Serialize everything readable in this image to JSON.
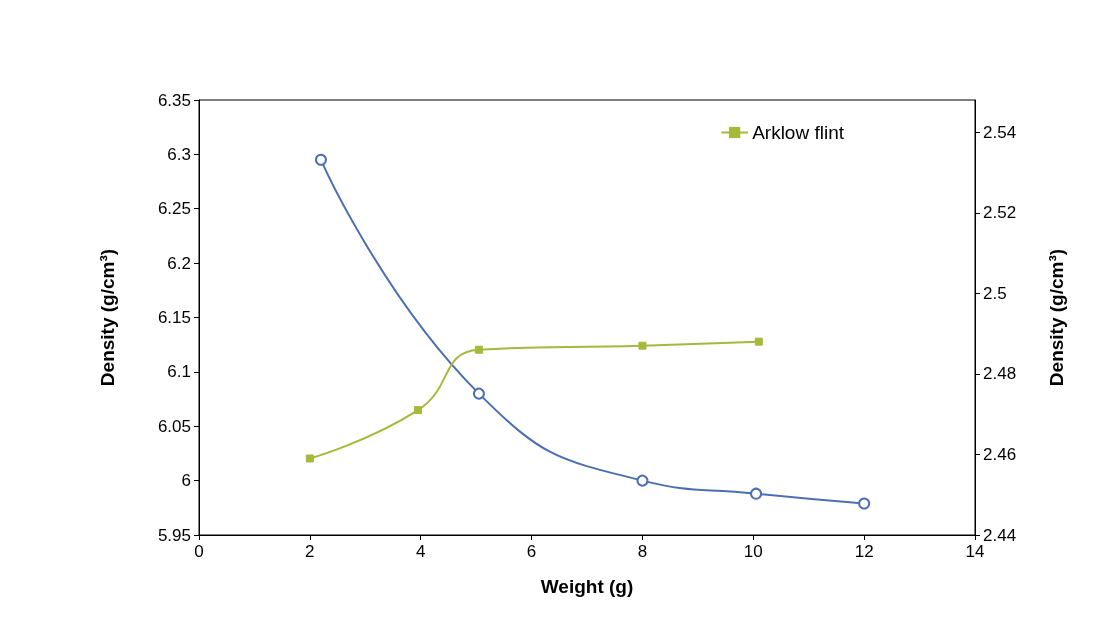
{
  "chart_data": {
    "type": "line",
    "xlabel": "Weight (g)",
    "ylabel": "Density (g/cm³)",
    "y2label": "Density (g/cm³)",
    "xlim": [
      0,
      14
    ],
    "xticks": [
      0,
      2,
      4,
      6,
      8,
      10,
      12,
      14
    ],
    "ylim": [
      5.95,
      6.35
    ],
    "yticks": [
      5.95,
      6,
      6.05,
      6.1,
      6.15,
      6.2,
      6.25,
      6.3,
      6.35
    ],
    "y2lim": [
      2.44,
      2.548
    ],
    "y2ticks": [
      2.44,
      2.46,
      2.48,
      2.5,
      2.52,
      2.54
    ],
    "grid": false,
    "legend": "top right",
    "line_style": "solid",
    "series": [
      {
        "color": "#4a6fb5",
        "marker": "circle",
        "x": [
          2.2,
          5.05,
          8,
          10.05,
          12
        ],
        "values": [
          6.295,
          6.08,
          6.0,
          5.988,
          5.979
        ]
      },
      {
        "name": "Arklow flint",
        "color": "#a8b83a",
        "marker": "square",
        "axis": "y2",
        "x": [
          2,
          3.95,
          5.05,
          8,
          10.1
        ],
        "values": [
          2.459,
          2.471,
          2.486,
          2.487,
          2.488
        ]
      }
    ]
  }
}
